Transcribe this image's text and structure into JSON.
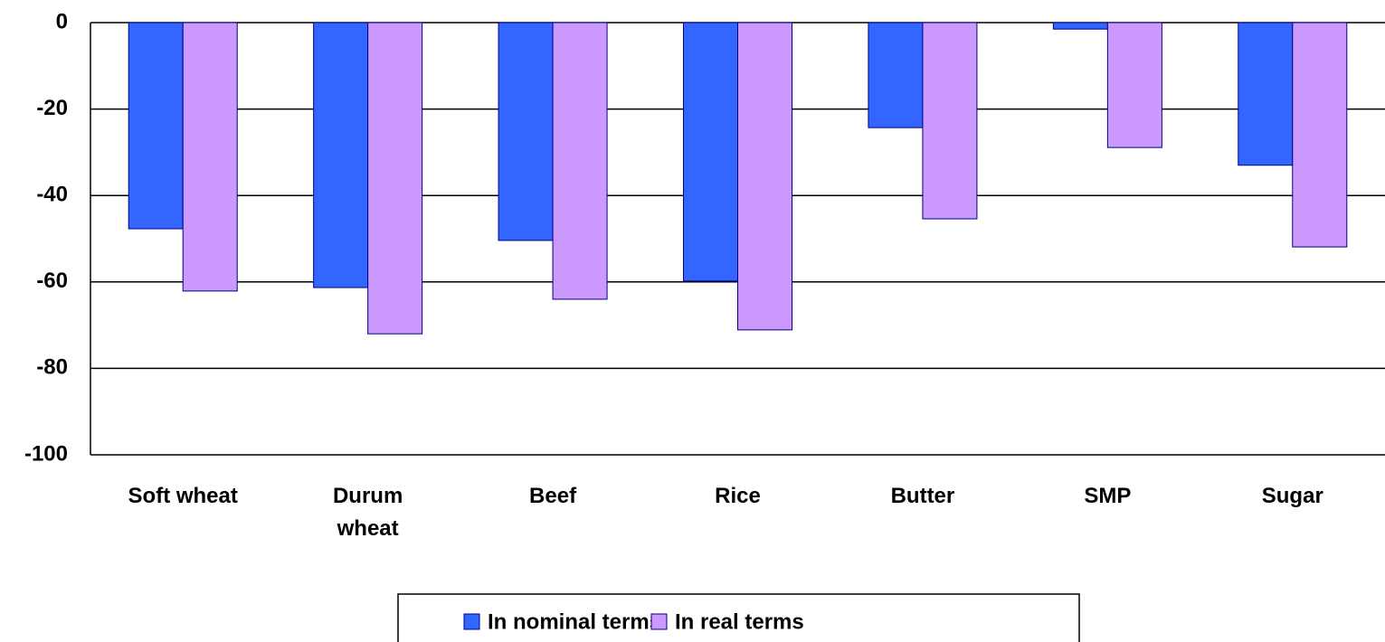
{
  "chart_data": {
    "type": "bar",
    "categories": [
      "Soft wheat",
      "Durum\nwheat",
      "Beef",
      "Rice",
      "Butter",
      "SMP",
      "Sugar"
    ],
    "series": [
      {
        "name": "In nominal terms",
        "color": "#3366ff",
        "values": [
          -47.7,
          -61.3,
          -50.4,
          -59.8,
          -24.3,
          -1.5,
          -33
        ]
      },
      {
        "name": "In real terms",
        "color": "#cc99ff",
        "values": [
          -62.1,
          -72,
          -64,
          -71.1,
          -45.4,
          -28.9,
          -51.9
        ]
      }
    ],
    "ylim": [
      -100,
      0
    ],
    "yticks": [
      0,
      -20,
      -40,
      -60,
      -80,
      -100
    ],
    "grid": true,
    "legend": "bottom"
  }
}
